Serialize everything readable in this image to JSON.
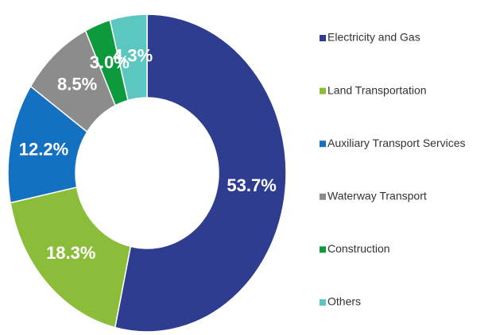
{
  "chart_data": {
    "type": "donut",
    "categories": [
      "Electricity and Gas",
      "Land Transportation",
      "Auxiliary Transport Services",
      "Waterway Transport",
      "Construction",
      "Others"
    ],
    "values": [
      53.7,
      18.3,
      12.2,
      8.5,
      3.0,
      4.3
    ],
    "value_labels": [
      "53.7%",
      "18.3%",
      "12.2%",
      "8.5%",
      "3.0%",
      "4.3%"
    ],
    "colors": [
      "#2e3d8f",
      "#8cbd3a",
      "#1470c0",
      "#8c8c8c",
      "#0c9a3c",
      "#5cc6c0"
    ],
    "legend": "right"
  }
}
